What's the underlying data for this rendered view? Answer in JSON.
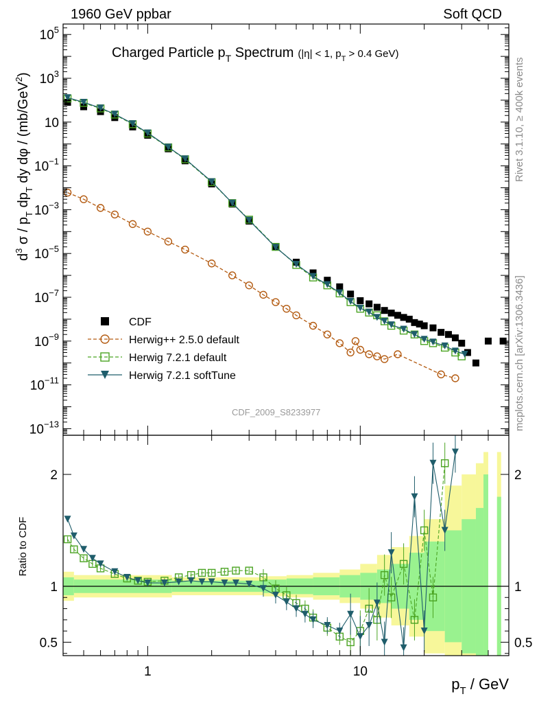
{
  "header": {
    "left": "1960 GeV ppbar",
    "right": "Soft QCD"
  },
  "side_labels": {
    "rivet": "Rivet 3.1.10, ≥ 400k events",
    "mcplots": "mcplots.cern.ch [arXiv:1306.3436]"
  },
  "analysis_id": "CDF_2009_S8233977",
  "colors": {
    "cdf": "#000000",
    "herwigpp": "#b35a10",
    "herwig721": "#4aa321",
    "softtune": "#1f5d6b",
    "band_inner": "#99f28f",
    "band_outer": "#f7f79a"
  },
  "chart_data": [
    {
      "type": "scatter",
      "title_main": "Charged Particle p",
      "title_sub": "T",
      "title_rest": " Spectrum",
      "title_cut": "(|η| < 1, p",
      "title_cut_sub": "T",
      "title_cut_rest": " > 0.4 GeV)",
      "xscale": "log",
      "yscale": "log",
      "xlim": [
        0.4,
        50
      ],
      "ylim": [
        5e-14,
        300000.0
      ],
      "ylabel": "d³ σ / p_T dp_T dy dφ / (mb/GeV²)",
      "yticks": [
        {
          "v": 100000.0,
          "label": "10",
          "exp": "5"
        },
        {
          "v": 1000.0,
          "label": "10",
          "exp": "3"
        },
        {
          "v": 10,
          "label": "10",
          "exp": ""
        },
        {
          "v": 0.1,
          "label": "10",
          "exp": "−1"
        },
        {
          "v": 0.001,
          "label": "10",
          "exp": "−3"
        },
        {
          "v": 1e-05,
          "label": "10",
          "exp": "−5"
        },
        {
          "v": 1e-07,
          "label": "10",
          "exp": "−7"
        },
        {
          "v": 1e-09,
          "label": "10",
          "exp": "−9"
        },
        {
          "v": 1e-11,
          "label": "10",
          "exp": "−11"
        },
        {
          "v": 1e-13,
          "label": "10",
          "exp": "−13"
        }
      ],
      "legend": [
        {
          "key": "cdf",
          "label": "CDF"
        },
        {
          "key": "herwigpp",
          "label": "Herwig++ 2.5.0 default"
        },
        {
          "key": "herwig721",
          "label": "Herwig 7.2.1 default"
        },
        {
          "key": "softtune",
          "label": "Herwig 7.2.1 softTune"
        }
      ],
      "series": [
        {
          "name": "CDF",
          "key": "cdf",
          "x": [
            0.42,
            0.5,
            0.6,
            0.7,
            0.85,
            1.0,
            1.25,
            1.5,
            2.0,
            2.5,
            3.0,
            4.0,
            5.0,
            6.0,
            7.0,
            8.0,
            9.0,
            10.0,
            11.0,
            12.0,
            13.0,
            14.0,
            15.0,
            16.0,
            17.0,
            18.0,
            19.0,
            20.0,
            22.0,
            24.0,
            26.0,
            28.0,
            30.0,
            32.0,
            35.0,
            40.0,
            47.0
          ],
          "y": [
            80,
            50,
            30,
            16,
            6,
            2.5,
            0.6,
            0.17,
            0.015,
            0.0018,
            0.0003,
            2e-05,
            4e-06,
            1.3e-06,
            6e-07,
            3e-07,
            1.4e-07,
            7e-08,
            5e-08,
            3.5e-08,
            2.5e-08,
            1.9e-08,
            1.5e-08,
            1.2e-08,
            1e-08,
            7e-09,
            6e-09,
            5e-09,
            4e-09,
            2.5e-09,
            2e-09,
            1.4e-09,
            8e-10,
            3e-10,
            1e-10,
            1e-09,
            1e-09
          ]
        },
        {
          "name": "Herwig++ 2.5.0 default",
          "key": "herwigpp",
          "x": [
            0.42,
            0.5,
            0.6,
            0.7,
            0.85,
            1.0,
            1.25,
            1.5,
            2.0,
            2.5,
            3.0,
            3.5,
            4.0,
            4.5,
            5.0,
            6.0,
            7.0,
            8.0,
            9.0,
            9.5,
            10.0,
            11.0,
            12.0,
            13.0,
            15.0,
            24.0,
            28.0
          ],
          "y": [
            0.006,
            0.003,
            0.0012,
            0.0006,
            0.00022,
            0.0001,
            3.5e-05,
            1.5e-05,
            3.5e-06,
            1e-06,
            3.5e-07,
            1.3e-07,
            6e-08,
            3e-08,
            1.5e-08,
            5e-09,
            2e-09,
            8e-10,
            3e-10,
            1e-09,
            4e-10,
            2.5e-10,
            2e-10,
            1.5e-10,
            2.5e-10,
            3e-11,
            2e-11
          ]
        },
        {
          "name": "Herwig 7.2.1 default",
          "key": "herwig721",
          "x": [
            0.42,
            0.5,
            0.6,
            0.7,
            0.85,
            1.0,
            1.25,
            1.5,
            2.0,
            2.5,
            3.0,
            4.0,
            5.0,
            6.0,
            7.0,
            8.0,
            9.0,
            10.0,
            11.0,
            12.0,
            13.0,
            14.0,
            16.0,
            18.0,
            20.0,
            22.0,
            25.0,
            28.0,
            30.0
          ],
          "y": [
            120,
            75,
            42,
            22,
            8,
            3,
            0.7,
            0.2,
            0.018,
            0.002,
            0.00035,
            2e-05,
            3e-06,
            8e-07,
            3.5e-07,
            1.5e-07,
            6e-08,
            3e-08,
            2e-08,
            1.5e-08,
            8e-09,
            5e-09,
            3e-09,
            2e-09,
            1e-09,
            8e-10,
            5e-10,
            3e-10,
            2e-10
          ]
        },
        {
          "name": "Herwig 7.2.1 softTune",
          "key": "softtune",
          "x": [
            0.42,
            0.5,
            0.6,
            0.7,
            0.85,
            1.0,
            1.25,
            1.5,
            2.0,
            2.5,
            3.0,
            4.0,
            5.0,
            6.0,
            7.0,
            8.0,
            9.0,
            10.0,
            11.0,
            12.0,
            13.0,
            14.0,
            16.0,
            18.0,
            20.0,
            22.0,
            25.0,
            28.0,
            31.0
          ],
          "y": [
            130,
            80,
            44,
            23,
            8.5,
            3.2,
            0.72,
            0.21,
            0.019,
            0.002,
            0.00033,
            1.9e-05,
            3.2e-06,
            9e-07,
            3.8e-07,
            1.6e-07,
            6.5e-08,
            3.2e-08,
            2.1e-08,
            1.2e-08,
            8e-09,
            5.5e-09,
            3.5e-09,
            2e-09,
            1.2e-09,
            9e-10,
            6e-10,
            3.5e-10,
            2.5e-10
          ]
        }
      ]
    },
    {
      "type": "scatter",
      "ylabel": "Ratio to CDF",
      "xlabel_main": "p",
      "xlabel_sub": "T",
      "xlabel_rest": " / GeV",
      "xscale": "log",
      "xlim": [
        0.4,
        50
      ],
      "ylim": [
        0.38,
        2.35
      ],
      "yticks": [
        0.5,
        1,
        2
      ],
      "ytick_labels": [
        "0.5",
        "1",
        "2"
      ],
      "xticks": [
        1,
        10
      ],
      "xtick_labels": [
        "1",
        "10"
      ],
      "bands": {
        "x_edges": [
          0.4,
          0.45,
          1.3,
          3.5,
          4.5,
          6.0,
          8.0,
          10.0,
          12.0,
          14.0,
          17.0,
          20.0,
          25.0,
          30.0,
          35.0,
          38.0,
          40.0,
          44.0,
          46.0,
          50.0
        ],
        "inner_half": [
          0.08,
          0.06,
          0.05,
          0.06,
          0.07,
          0.08,
          0.1,
          0.12,
          0.15,
          0.2,
          0.3,
          0.4,
          0.5,
          0.6,
          0.7,
          1.0,
          0.0,
          0.8,
          0.0
        ],
        "outer_half": [
          0.13,
          0.1,
          0.08,
          0.09,
          0.1,
          0.12,
          0.15,
          0.2,
          0.28,
          0.35,
          0.45,
          0.6,
          0.9,
          1.0,
          1.1,
          1.2,
          0.0,
          1.2,
          0.0
        ]
      },
      "series": [
        {
          "name": "Herwig 7.2.1 default",
          "key": "herwig721",
          "x": [
            0.42,
            0.45,
            0.5,
            0.55,
            0.6,
            0.7,
            0.8,
            0.9,
            1.0,
            1.2,
            1.4,
            1.6,
            1.8,
            2.0,
            2.3,
            2.6,
            3.0,
            3.5,
            4.0,
            4.5,
            5.0,
            5.5,
            6.0,
            7.0,
            8.0,
            9.0,
            10.0,
            11.0,
            12.0,
            13.0,
            14.0,
            16.0,
            18.0,
            20.0,
            22.0,
            25.0
          ],
          "y": [
            1.42,
            1.33,
            1.25,
            1.2,
            1.16,
            1.11,
            1.07,
            1.05,
            1.04,
            1.05,
            1.08,
            1.1,
            1.12,
            1.12,
            1.13,
            1.14,
            1.14,
            1.08,
            0.98,
            0.92,
            0.85,
            0.8,
            0.72,
            0.63,
            0.55,
            0.5,
            0.6,
            0.8,
            0.7,
            1.1,
            0.9,
            1.2,
            0.7,
            1.5,
            0.9,
            2.1
          ]
        },
        {
          "name": "Herwig 7.2.1 softTune",
          "key": "softtune",
          "x": [
            0.42,
            0.45,
            0.5,
            0.55,
            0.6,
            0.7,
            0.8,
            0.9,
            1.0,
            1.2,
            1.4,
            1.6,
            1.8,
            2.0,
            2.3,
            2.6,
            3.0,
            3.5,
            4.0,
            4.5,
            5.0,
            5.5,
            6.0,
            7.0,
            8.0,
            9.0,
            10.0,
            11.0,
            12.0,
            13.0,
            14.0,
            16.0,
            18.0,
            20.0,
            22.0,
            25.0,
            28.0
          ],
          "y": [
            1.6,
            1.45,
            1.33,
            1.25,
            1.2,
            1.13,
            1.08,
            1.05,
            1.03,
            1.03,
            1.04,
            1.05,
            1.04,
            1.04,
            1.03,
            1.03,
            1.02,
            0.98,
            0.92,
            0.86,
            0.8,
            0.75,
            0.7,
            0.65,
            0.6,
            0.75,
            0.55,
            0.65,
            0.85,
            0.5,
            1.3,
            0.45,
            1.8,
            0.6,
            2.1,
            1.5,
            2.2
          ]
        }
      ]
    }
  ]
}
